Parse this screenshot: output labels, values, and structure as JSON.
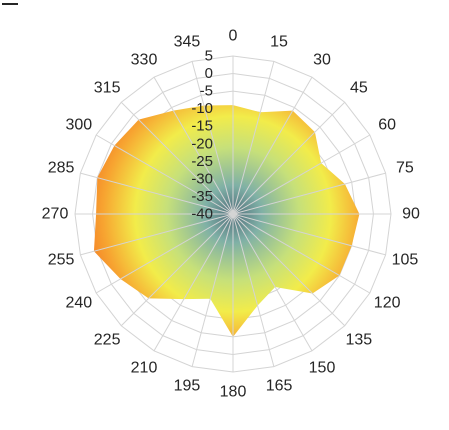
{
  "chart_data": {
    "type": "radar",
    "angle_labels": [
      "0",
      "15",
      "30",
      "45",
      "60",
      "75",
      "90",
      "105",
      "120",
      "135",
      "150",
      "165",
      "180",
      "195",
      "210",
      "225",
      "240",
      "255",
      "270",
      "285",
      "300",
      "315",
      "330",
      "345"
    ],
    "values": [
      -9,
      -10,
      -6,
      -7,
      -11,
      -7,
      -4,
      -5,
      -5,
      -8,
      -16,
      -13,
      -5,
      -15,
      -12,
      -6,
      -3,
      1,
      -1,
      0,
      -1,
      -2,
      -6,
      -8
    ],
    "radial_axis_labels": [
      "5",
      "0",
      "-5",
      "-10",
      "-15",
      "-20",
      "-25",
      "-30",
      "-35",
      "-40"
    ],
    "rlim": [
      -40,
      5
    ],
    "radial_step": 5,
    "title": "",
    "grid": true,
    "fill": "radial gradient",
    "colors": {
      "center": "#4f6d7a",
      "inner": "#7fb0a6",
      "mid_green": "#c6e07a",
      "yellow": "#f2ec4a",
      "orange": "#f7a531",
      "outer": "#f36f22",
      "grid": "#d4d4d4",
      "text": "#262626"
    }
  }
}
